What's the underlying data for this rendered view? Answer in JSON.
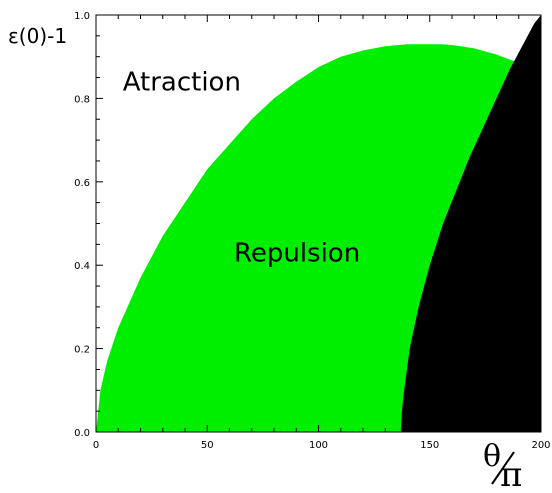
{
  "chart_data": {
    "type": "area",
    "title": "",
    "xlabel": {
      "numerator": "θ",
      "denominator": "π"
    },
    "ylabel": "ε(0)-1",
    "xlim": [
      0,
      200
    ],
    "ylim": [
      0.0,
      1.0
    ],
    "x_ticks": [
      0,
      50,
      100,
      150,
      200
    ],
    "y_ticks": [
      "0.0",
      "0.2",
      "0.4",
      "0.6",
      "0.8",
      "1.0"
    ],
    "grid": false,
    "regions": [
      {
        "label": "Atraction",
        "color": "#ffffff",
        "label_at": [
          35,
          0.84
        ]
      },
      {
        "label": "Repulsion",
        "color": "#00ee00",
        "label_at": [
          93,
          0.43
        ]
      },
      {
        "label": "",
        "color": "#000000"
      }
    ],
    "repulsion_upper_boundary": {
      "x": [
        0,
        2,
        5,
        10,
        15,
        20,
        30,
        40,
        50,
        60,
        70,
        80,
        90,
        100,
        110,
        120,
        130,
        140,
        150,
        155,
        160,
        170,
        180,
        185,
        190
      ],
      "y": [
        0.0,
        0.1,
        0.17,
        0.25,
        0.31,
        0.37,
        0.47,
        0.55,
        0.63,
        0.69,
        0.75,
        0.8,
        0.84,
        0.875,
        0.9,
        0.915,
        0.925,
        0.93,
        0.93,
        0.93,
        0.928,
        0.92,
        0.905,
        0.895,
        0.885
      ]
    },
    "black_region_left_boundary": {
      "x": [
        137,
        137.5,
        138.5,
        141,
        145,
        150,
        156,
        162,
        168,
        174,
        180,
        186,
        192,
        197,
        200
      ],
      "y": [
        0.0,
        0.05,
        0.1,
        0.2,
        0.3,
        0.4,
        0.5,
        0.58,
        0.66,
        0.73,
        0.8,
        0.87,
        0.93,
        0.98,
        1.0
      ]
    }
  }
}
